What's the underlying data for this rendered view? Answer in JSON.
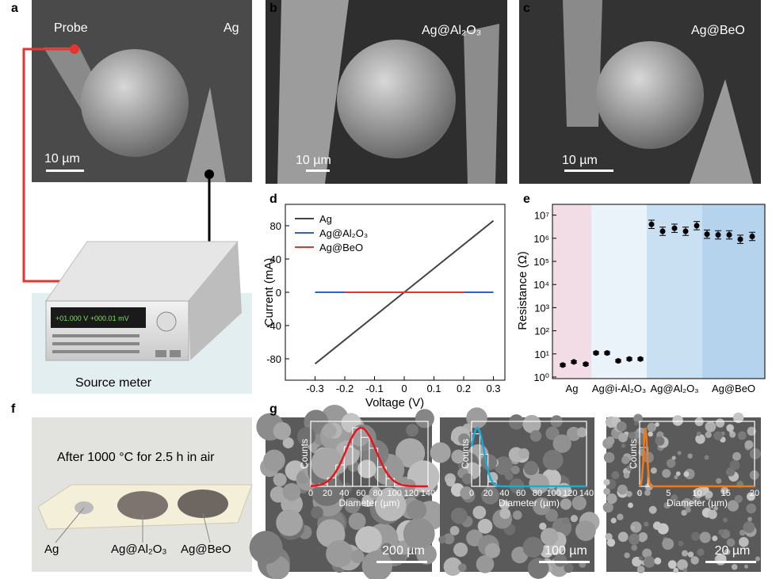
{
  "panels": {
    "a": "a",
    "b": "b",
    "c": "c",
    "d": "d",
    "e": "e",
    "f": "f",
    "g": "g"
  },
  "panel_a": {
    "probe": "Probe",
    "sample": "Ag",
    "scale": "10 µm",
    "instrument": "Source meter",
    "display": "+01.000 V   +000.01 mV"
  },
  "panel_b": {
    "sample": "Ag@Al₂O₃",
    "scale": "10 µm"
  },
  "panel_c": {
    "sample": "Ag@BeO",
    "scale": "10 µm"
  },
  "panel_f": {
    "caption": "After 1000 °C for 2.5 h in air",
    "labels": [
      "Ag",
      "Ag@Al₂O₃",
      "Ag@BeO"
    ]
  },
  "panel_g": {
    "scales": [
      "200 µm",
      "100 µm",
      "20 µm"
    ],
    "ylabel": "Counts",
    "xlabel": "Diameter (µm)"
  },
  "chart_data": [
    {
      "type": "line",
      "panel": "d",
      "xlabel": "Voltage (V)",
      "ylabel": "Current (mA)",
      "xlim": [
        -0.33,
        0.33
      ],
      "ylim": [
        -100,
        100
      ],
      "xticks": [
        "-0.3",
        "-0.2",
        "-0.1",
        "0",
        "0.1",
        "0.2",
        "0.3"
      ],
      "yticks": [
        "80",
        "40",
        "0",
        "-40",
        "-80"
      ],
      "legend": "top-left",
      "series": [
        {
          "name": "Ag",
          "color": "#444444",
          "x": [
            -0.3,
            0.3
          ],
          "y": [
            -86,
            86
          ]
        },
        {
          "name": "Ag@Al₂O₃",
          "color": "#2a62c9",
          "x": [
            -0.3,
            0.3
          ],
          "y": [
            0,
            0
          ]
        },
        {
          "name": "Ag@BeO",
          "color": "#e8342f",
          "x": [
            -0.2,
            0.2
          ],
          "y": [
            0,
            0
          ]
        }
      ]
    },
    {
      "type": "scatter",
      "panel": "e",
      "ylabel": "Resistance (Ω)",
      "yscale": "log",
      "ylim": [
        1,
        20000000
      ],
      "yticks": [
        "10⁰",
        "10¹",
        "10²",
        "10³",
        "10⁴",
        "10⁵",
        "10⁶",
        "10⁷"
      ],
      "groups": [
        {
          "name": "Ag",
          "color": "#f2dce6",
          "values": [
            3.3,
            4.5,
            3.6
          ]
        },
        {
          "name": "Ag@i-Al₂O₃",
          "color": "#eaf3f9",
          "values": [
            11,
            11,
            5,
            6,
            6
          ]
        },
        {
          "name": "Ag@Al₂O₃",
          "color": "#c8e0f2",
          "values": [
            4000000,
            2000000,
            2700000,
            2000000,
            3500000
          ]
        },
        {
          "name": "Ag@BeO",
          "color": "#b5d3ec",
          "values": [
            1500000,
            1400000,
            1400000,
            900000,
            1200000
          ]
        }
      ]
    },
    {
      "type": "bar",
      "panel": "g1",
      "xticks": [
        "0",
        "20",
        "40",
        "60",
        "80",
        "100",
        "120",
        "140"
      ],
      "xlim": [
        0,
        140
      ],
      "fit_color": "#e8141b",
      "fit_peak": 60,
      "fit_width": 18
    },
    {
      "type": "bar",
      "panel": "g2",
      "xticks": [
        "0",
        "20",
        "40",
        "60",
        "80",
        "100",
        "120",
        "140"
      ],
      "xlim": [
        0,
        140
      ],
      "fit_color": "#1ba9d8",
      "fit_peak": 7,
      "fit_width": 8
    },
    {
      "type": "bar",
      "panel": "g3",
      "xticks": [
        "0",
        "5",
        "10",
        "15",
        "20"
      ],
      "xlim": [
        0,
        20
      ],
      "fit_color": "#f07a1a",
      "fit_peak": 1,
      "fit_width": 0.3
    }
  ]
}
